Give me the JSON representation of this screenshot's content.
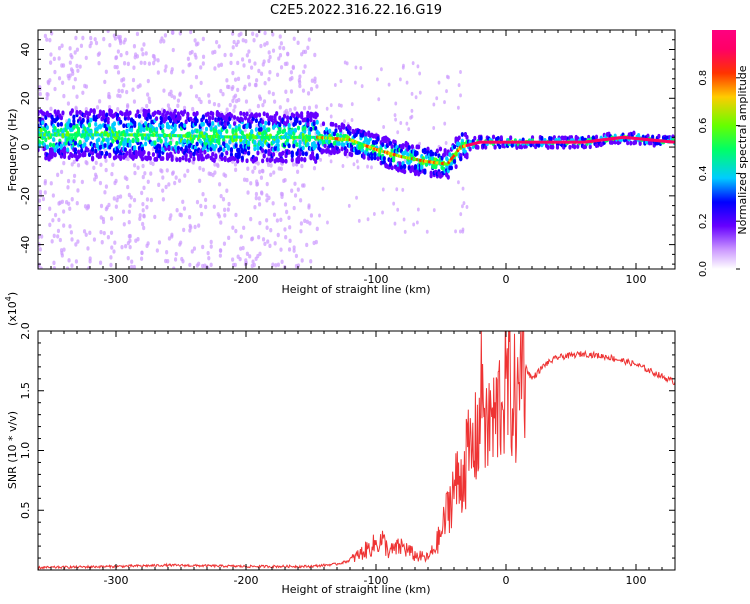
{
  "chart_data": [
    {
      "type": "heatmap",
      "title": "C2E5.2022.316.22.16.G19",
      "xlabel": "Height of straight line (km)",
      "ylabel": "Frequency (Hz)",
      "xlim": [
        -360,
        130
      ],
      "ylim": [
        -50,
        48
      ],
      "xticks": [
        -300,
        -200,
        -100,
        0,
        100
      ],
      "xtick_labels": [
        "-300",
        "-200",
        "-100",
        "0",
        "100"
      ],
      "yticks": [
        -40,
        -20,
        0,
        20,
        40
      ],
      "ytick_labels": [
        "-40",
        "-20",
        "0",
        "20",
        "40"
      ],
      "colorbar": {
        "label": "Normalized spectral amplitude",
        "range": [
          0,
          1
        ],
        "ticks": [
          0.0,
          0.2,
          0.4,
          0.6,
          0.8
        ],
        "tick_labels": [
          "0.0",
          "0.2",
          "0.4",
          "0.6",
          "0.8"
        ],
        "colors": [
          "#ffffff",
          "#cc99ff",
          "#6600ff",
          "#0000ff",
          "#00ccff",
          "#00ff66",
          "#66ff00",
          "#ffcc00",
          "#ff3300",
          "#ff0066",
          "#ff0080"
        ]
      },
      "main_trace": {
        "description_points_x": [
          -360,
          -280,
          -200,
          -145,
          -120,
          -100,
          -80,
          -60,
          -45,
          -35,
          -20,
          0,
          60,
          90,
          130
        ],
        "description_points_y": [
          5,
          5,
          4,
          4,
          3,
          -1,
          -4,
          -6,
          -7,
          0,
          2,
          2,
          2,
          4,
          2
        ]
      }
    },
    {
      "type": "line",
      "xlabel": "Height of straight line (km)",
      "ylabel": "SNR (10 * v/v)",
      "y_multiplier_label": "(x10",
      "y_multiplier_exp": "4",
      "y_multiplier_close": ")",
      "xlim": [
        -360,
        130
      ],
      "ylim": [
        0,
        2.0
      ],
      "xticks": [
        -300,
        -200,
        -100,
        0,
        100
      ],
      "xtick_labels": [
        "-300",
        "-200",
        "-100",
        "0",
        "100"
      ],
      "yticks": [
        0.5,
        1.0,
        1.5,
        2.0
      ],
      "ytick_labels": [
        "0.5",
        "1.0",
        "1.5",
        "2.0"
      ],
      "line_color": "#ee3333",
      "series": [
        {
          "name": "SNR",
          "x": [
            -360,
            -300,
            -260,
            -200,
            -150,
            -130,
            -120,
            -110,
            -100,
            -95,
            -90,
            -80,
            -70,
            -60,
            -55,
            -50,
            -45,
            -40,
            -35,
            -30,
            -25,
            -20,
            -18,
            -15,
            -12,
            -10,
            -5,
            0,
            5,
            10,
            12,
            15,
            20,
            30,
            40,
            60,
            80,
            100,
            120,
            130
          ],
          "y": [
            0.02,
            0.03,
            0.04,
            0.03,
            0.03,
            0.05,
            0.08,
            0.15,
            0.22,
            0.25,
            0.15,
            0.2,
            0.12,
            0.1,
            0.18,
            0.3,
            0.5,
            0.7,
            0.75,
            0.95,
            1.0,
            1.25,
            1.65,
            1.1,
            1.3,
            1.2,
            1.4,
            1.55,
            1.45,
            1.35,
            2.0,
            1.7,
            1.6,
            1.72,
            1.78,
            1.81,
            1.78,
            1.72,
            1.62,
            1.57
          ]
        }
      ]
    }
  ]
}
